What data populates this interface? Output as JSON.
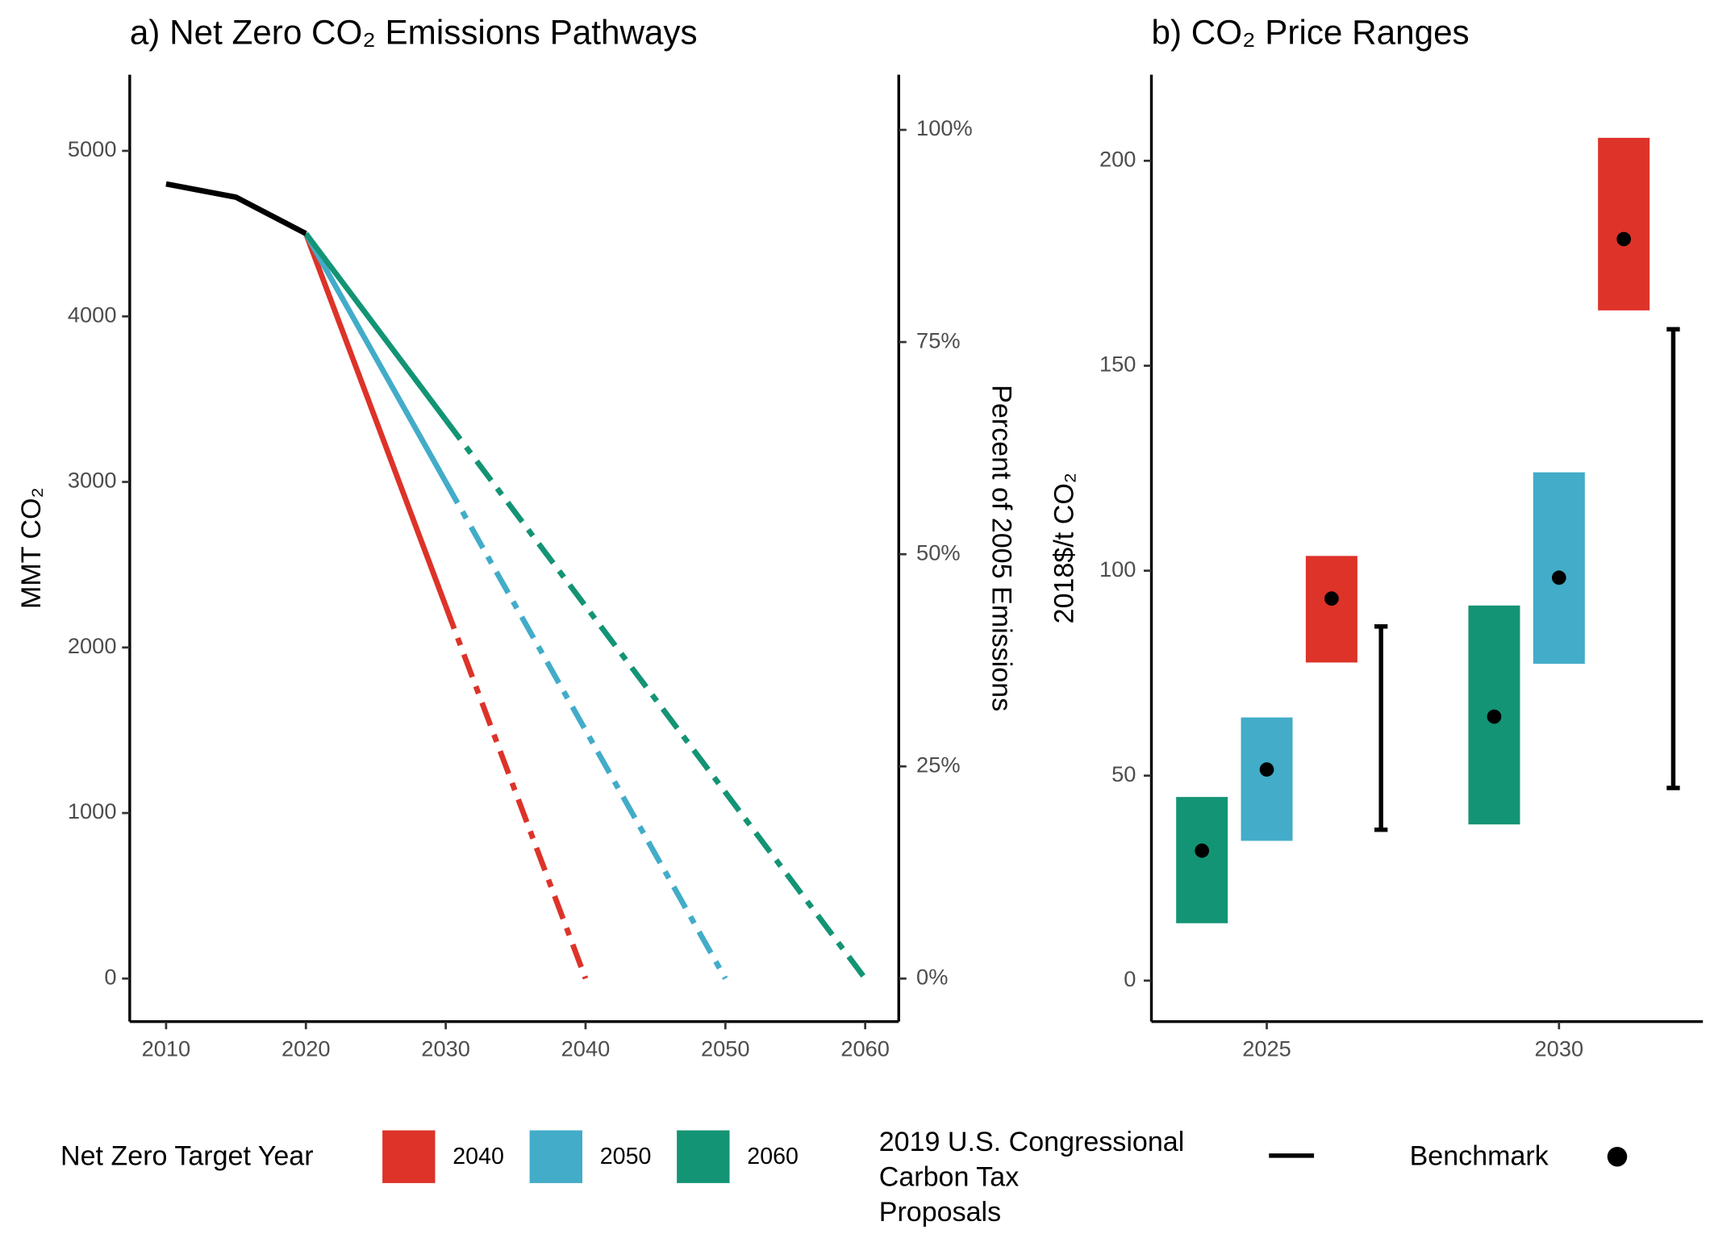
{
  "chart_data": [
    {
      "type": "line",
      "title": "a) Net Zero CO₂ Emissions Pathways",
      "y_label": "MMT CO₂",
      "y2_label": "Percent of 2005 Emissions",
      "xlim": [
        2007.4,
        2062.4
      ],
      "xticks": [
        2010,
        2020,
        2030,
        2040,
        2050,
        2060
      ],
      "ylim": [
        -260,
        5460
      ],
      "yticks": [
        0,
        1000,
        2000,
        3000,
        4000,
        5000
      ],
      "y2lim": [
        -5.07,
        106.5
      ],
      "y2ticks": [
        {
          "value": 0,
          "label": "0%"
        },
        {
          "value": 25,
          "label": "25%"
        },
        {
          "value": 50,
          "label": "50%"
        },
        {
          "value": 75,
          "label": "75%"
        },
        {
          "value": 100,
          "label": "100%"
        }
      ],
      "history": {
        "color": "#000000",
        "x": [
          2010,
          2015,
          2020
        ],
        "values": [
          4800,
          4720,
          4500
        ]
      },
      "legend_title": "Net Zero Target Year",
      "series": [
        {
          "name": "2040",
          "color": "#dd3329",
          "x": [
            2020,
            2030,
            2040
          ],
          "values": [
            4500,
            2250,
            0
          ],
          "segment_styles": [
            "solid",
            "dashed"
          ]
        },
        {
          "name": "2050",
          "color": "#42acc9",
          "x": [
            2020,
            2030,
            2050
          ],
          "values": [
            4500,
            3000,
            0
          ],
          "segment_styles": [
            "solid",
            "dashed"
          ]
        },
        {
          "name": "2060",
          "color": "#139474",
          "x": [
            2020,
            2030,
            2060
          ],
          "values": [
            4500,
            3375,
            0
          ],
          "segment_styles": [
            "solid",
            "dashed"
          ]
        }
      ]
    },
    {
      "type": "range",
      "title": "b) CO₂ Price Ranges",
      "y_label": "2018$/t CO₂",
      "categories": [
        "2025",
        "2030"
      ],
      "ylim": [
        -10,
        221
      ],
      "yticks": [
        0,
        50,
        100,
        150,
        200
      ],
      "series": [
        {
          "color": "#139474",
          "low": [
            14,
            38.1
          ],
          "high": [
            44.8,
            91.5
          ],
          "benchmark": [
            31.7,
            64.4
          ]
        },
        {
          "color": "#42acc9",
          "low": [
            34.1,
            77.3
          ],
          "high": [
            64.2,
            124
          ],
          "benchmark": [
            51.5,
            98.3
          ]
        },
        {
          "color": "#dd3329",
          "low": [
            77.6,
            163.5
          ],
          "high": [
            103.6,
            205.6
          ],
          "benchmark": [
            93.2,
            180.9
          ]
        }
      ],
      "proposals": {
        "color": "#000000",
        "low": [
          36.8,
          47
        ],
        "high": [
          86.4,
          158.9
        ],
        "legend_lines": [
          "2019 U.S. Congressional",
          "Carbon Tax",
          "Proposals"
        ]
      },
      "benchmark_label": "Benchmark"
    }
  ]
}
